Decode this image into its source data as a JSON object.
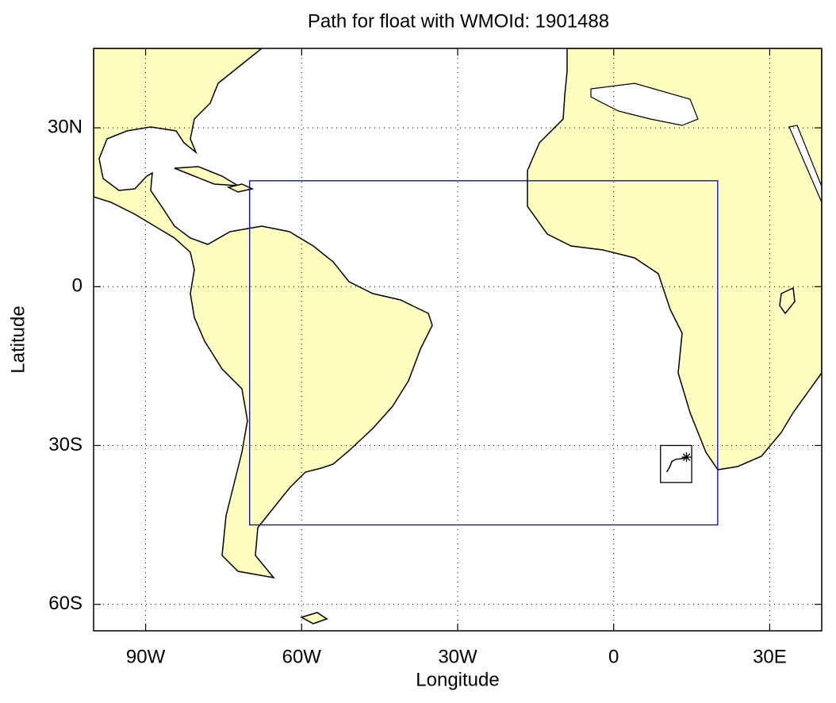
{
  "chart_data": {
    "type": "map",
    "title": "Path for float with WMOId: 1901488",
    "xlabel": "Longitude",
    "ylabel": "Latitude",
    "xlim": [
      -100,
      40
    ],
    "ylim": [
      -65,
      45
    ],
    "xticks": [
      {
        "value": -90,
        "label": "90W"
      },
      {
        "value": -60,
        "label": "60W"
      },
      {
        "value": -30,
        "label": "30W"
      },
      0,
      {
        "value": 30,
        "label": "30E"
      }
    ],
    "yticks": [
      {
        "value": 30,
        "label": "30N"
      },
      0,
      {
        "value": -30,
        "label": "30S"
      },
      {
        "value": -60,
        "label": "60S"
      }
    ],
    "grid": true,
    "region": {
      "lon": [
        -70,
        20
      ],
      "lat": [
        -45,
        20
      ],
      "color": "#0000cc"
    },
    "float_box": {
      "lon": [
        9,
        15
      ],
      "lat": [
        -30,
        -37
      ],
      "color": "#000000"
    },
    "path": {
      "lon": [
        10.2,
        10.8,
        11.2,
        12.0,
        13.0,
        14.0
      ],
      "lat": [
        -35.0,
        -34.0,
        -33.0,
        -32.6,
        -32.5,
        -32.2
      ],
      "color": "#000000"
    }
  }
}
